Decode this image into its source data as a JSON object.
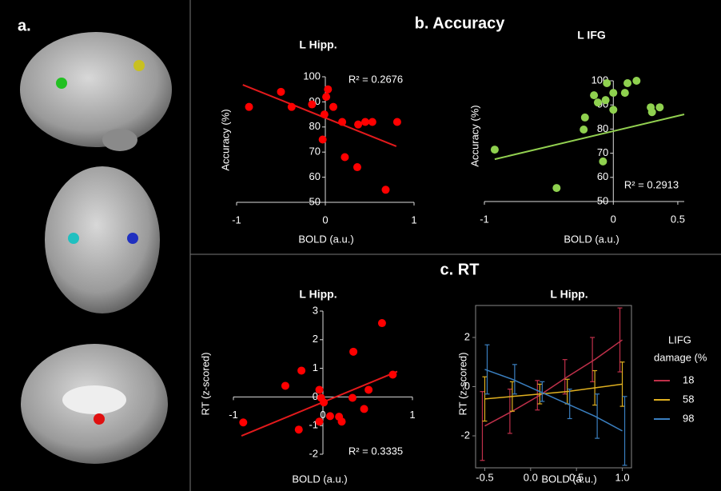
{
  "panels": {
    "a": "a.",
    "b": "b. Accuracy",
    "c": "c. RT"
  },
  "chart_data": [
    {
      "type": "scatter",
      "title": "L Hipp.",
      "x_label": "BOLD (a.u.)",
      "y_label": "Accuracy (%)",
      "annotation": "R² = 0.2676",
      "x": [
        -0.86,
        -0.5,
        -0.38,
        -0.15,
        0.03,
        0.01,
        0.09,
        -0.01,
        0.19,
        0.37,
        0.45,
        0.53,
        0.81,
        -0.03,
        0.22,
        0.36,
        0.68
      ],
      "y": [
        88,
        94,
        88,
        89,
        95,
        92,
        88,
        85,
        82,
        81,
        82,
        82,
        82,
        75,
        68,
        64,
        55
      ],
      "color": "#ff0000",
      "trendline": {
        "x": [
          -0.93,
          0.8
        ],
        "y": [
          96.8,
          72.3
        ],
        "color": "#e31a1c"
      },
      "xlim": [
        -1,
        1
      ],
      "ylim": [
        50,
        100
      ],
      "xticks": [
        -1,
        0,
        1
      ],
      "yticks": [
        50,
        60,
        70,
        80,
        90,
        100
      ]
    },
    {
      "type": "scatter",
      "title": "L IFG",
      "x_label": "BOLD (a.u.)",
      "y_label": "Accuracy (%)",
      "annotation": "R² = 0.2913",
      "x": [
        -0.92,
        -0.44,
        -0.08,
        -0.23,
        -0.22,
        -0.15,
        -0.05,
        -0.06,
        0.0,
        0.0,
        0.09,
        0.11,
        0.18,
        0.29,
        0.3,
        0.36,
        -0.12
      ],
      "y": [
        71.5,
        55.6,
        66.6,
        79.8,
        84.8,
        94,
        99,
        92,
        95,
        88,
        95,
        99,
        100,
        89,
        87,
        89,
        91
      ],
      "color": "#8fd14f",
      "trendline": {
        "x": [
          -0.92,
          0.55
        ],
        "y": [
          67.5,
          86.1
        ],
        "color": "#92d050"
      },
      "xlim": [
        -1,
        0.55
      ],
      "ylim": [
        50,
        100
      ],
      "xticks": [
        -1,
        0,
        0.5
      ],
      "yticks": [
        50,
        60,
        70,
        80,
        90,
        100
      ]
    },
    {
      "type": "scatter",
      "title": "L Hipp.",
      "x_label": "BOLD (a.u.)",
      "y_label": "RT (z-scored)",
      "annotation": "R² = 0.3335",
      "x": [
        -0.89,
        -0.27,
        -0.04,
        -0.24,
        -0.42,
        -0.04,
        -0.02,
        0.01,
        0.18,
        0.21,
        0.08,
        0.33,
        0.46,
        0.51,
        0.34,
        0.66,
        0.78
      ],
      "y": [
        -0.89,
        -1.14,
        -0.86,
        0.92,
        0.39,
        0.25,
        -0.03,
        -0.19,
        -0.69,
        -0.86,
        -0.67,
        -0.03,
        -0.42,
        0.25,
        1.58,
        2.58,
        0.78
      ],
      "color": "#ff0000",
      "trendline": {
        "x": [
          -0.91,
          0.83
        ],
        "y": [
          -1.36,
          0.89
        ],
        "color": "#e31a1c"
      },
      "xlim": [
        -1,
        1
      ],
      "ylim": [
        -2,
        3
      ],
      "xticks": [
        -1,
        0,
        1
      ],
      "yticks": [
        -2,
        -1,
        0,
        1,
        2,
        3
      ]
    },
    {
      "type": "line",
      "title": "L Hipp.",
      "x_label": "BOLD (a.u.)",
      "y_label": "RT (z-scored)",
      "legend_title": [
        "LIFG",
        "damage (%"
      ],
      "x": [
        -0.5,
        -0.2,
        0.1,
        0.4,
        0.7,
        1.0
      ],
      "series": [
        {
          "name": "18",
          "color": "#c0304a",
          "values": [
            -1.6,
            -1.0,
            -0.35,
            0.4,
            1.1,
            1.9
          ],
          "errors": [
            1.4,
            0.9,
            0.6,
            0.7,
            0.9,
            1.3
          ]
        },
        {
          "name": "58",
          "color": "#e0b020",
          "values": [
            -0.5,
            -0.4,
            -0.3,
            -0.2,
            -0.05,
            0.1
          ],
          "errors": [
            0.9,
            0.6,
            0.4,
            0.5,
            0.7,
            0.9
          ]
        },
        {
          "name": "98",
          "color": "#3a7fc0",
          "values": [
            0.7,
            0.3,
            -0.2,
            -0.7,
            -1.2,
            -1.8
          ],
          "errors": [
            1.0,
            0.6,
            0.4,
            0.6,
            0.9,
            1.4
          ]
        }
      ],
      "xlim": [
        -0.6,
        1.1
      ],
      "ylim": [
        -3.3,
        3.3
      ],
      "xticks": [
        -0.5,
        {
          "value": 0,
          "label": "0.0"
        },
        0.5,
        {
          "value": 1,
          "label": "1.0"
        }
      ],
      "yticks": [
        -2,
        0,
        2
      ]
    }
  ]
}
